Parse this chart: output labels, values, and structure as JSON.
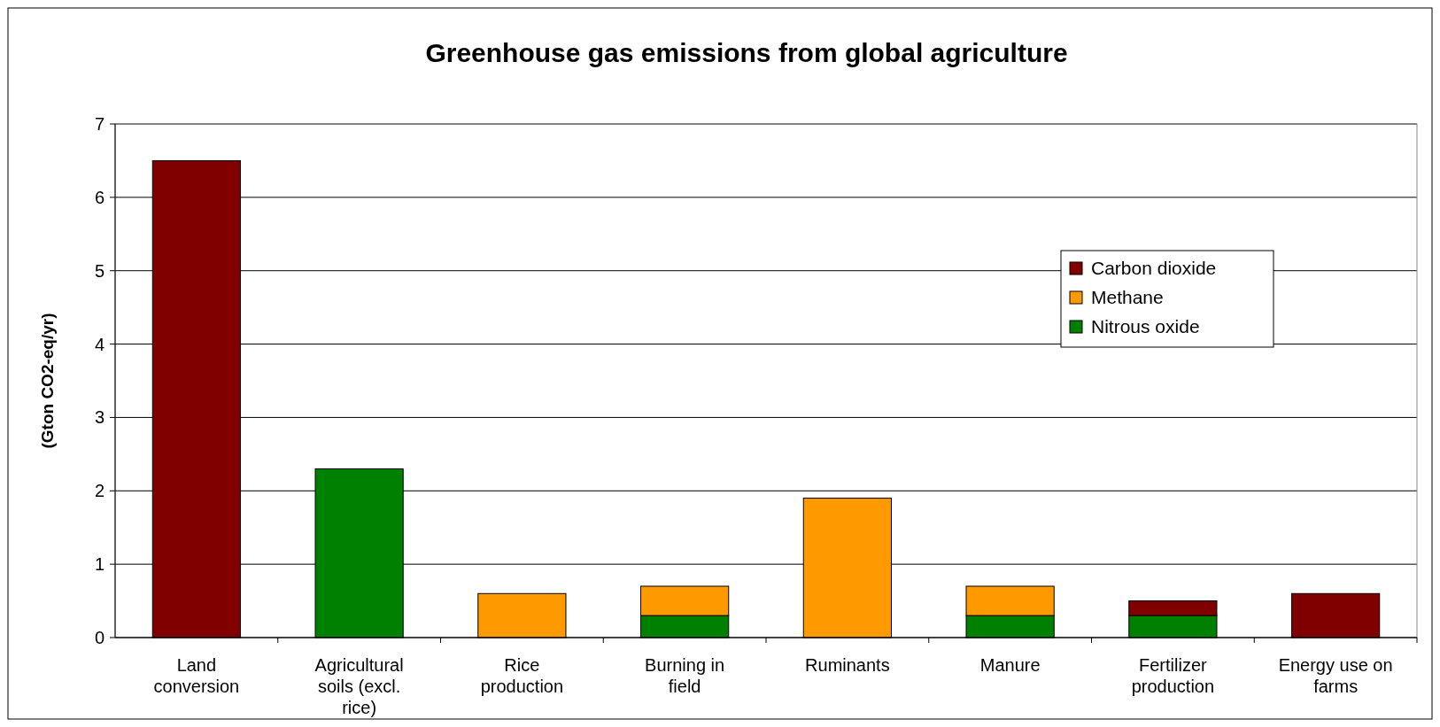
{
  "chart_data": {
    "type": "bar",
    "title": "Greenhouse gas emissions from global agriculture",
    "ylabel": "(Gton CO2-eq/yr)",
    "categories": [
      "Land conversion",
      "Agricultural soils (excl. rice)",
      "Rice production",
      "Burning in field",
      "Ruminants",
      "Manure",
      "Fertilizer production",
      "Energy use on farms"
    ],
    "stacked": true,
    "series": [
      {
        "name": "Nitrous oxide",
        "color": "#008000",
        "values": [
          null,
          2.3,
          null,
          0.3,
          null,
          0.3,
          0.3,
          null
        ]
      },
      {
        "name": "Methane",
        "color": "#ff9900",
        "values": [
          null,
          null,
          0.6,
          0.4,
          1.9,
          0.4,
          null,
          null
        ]
      },
      {
        "name": "Carbon dioxide",
        "color": "#800000",
        "values": [
          6.5,
          null,
          null,
          null,
          null,
          null,
          0.2,
          0.6
        ]
      }
    ],
    "ylim": [
      0,
      7
    ],
    "yticks": [
      0,
      1,
      2,
      3,
      4,
      5,
      6,
      7
    ],
    "grid": "y",
    "legend": "right"
  }
}
